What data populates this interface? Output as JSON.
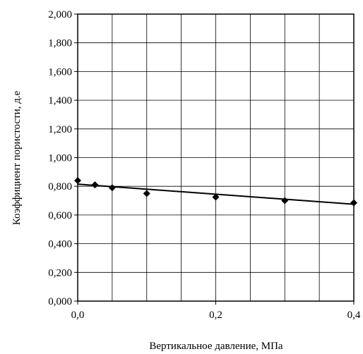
{
  "chart_data": {
    "type": "scatter",
    "title": "",
    "xlabel": "Вертикальное давление, МПа",
    "ylabel": "Коэффициент пористости, д.е",
    "xlim": [
      0,
      0.4
    ],
    "ylim": [
      0,
      2.0
    ],
    "x_ticks": [
      0.0,
      0.2,
      0.4
    ],
    "x_tick_labels": [
      "0,0",
      "0,2",
      "0,4"
    ],
    "y_ticks": [
      0,
      0.2,
      0.4,
      0.6,
      0.8,
      1.0,
      1.2,
      1.4,
      1.6,
      1.8,
      2.0
    ],
    "y_tick_labels": [
      "0,000",
      "0,200",
      "0,400",
      "0,600",
      "0,800",
      "1,000",
      "1,200",
      "1,400",
      "1,600",
      "1,800",
      "2,000"
    ],
    "x_grid": [
      0,
      0.05,
      0.1,
      0.15,
      0.2,
      0.25,
      0.3,
      0.35,
      0.4
    ],
    "grid": true,
    "series": [
      {
        "marker": "diamond",
        "color": "#000000",
        "x": [
          0.0,
          0.025,
          0.05,
          0.1,
          0.2,
          0.3,
          0.4
        ],
        "y": [
          0.84,
          0.81,
          0.79,
          0.75,
          0.725,
          0.7,
          0.685
        ]
      }
    ],
    "trendline": {
      "type": "linear",
      "color": "#000000",
      "x": [
        0.0,
        0.4
      ],
      "y": [
        0.815,
        0.675
      ]
    }
  }
}
